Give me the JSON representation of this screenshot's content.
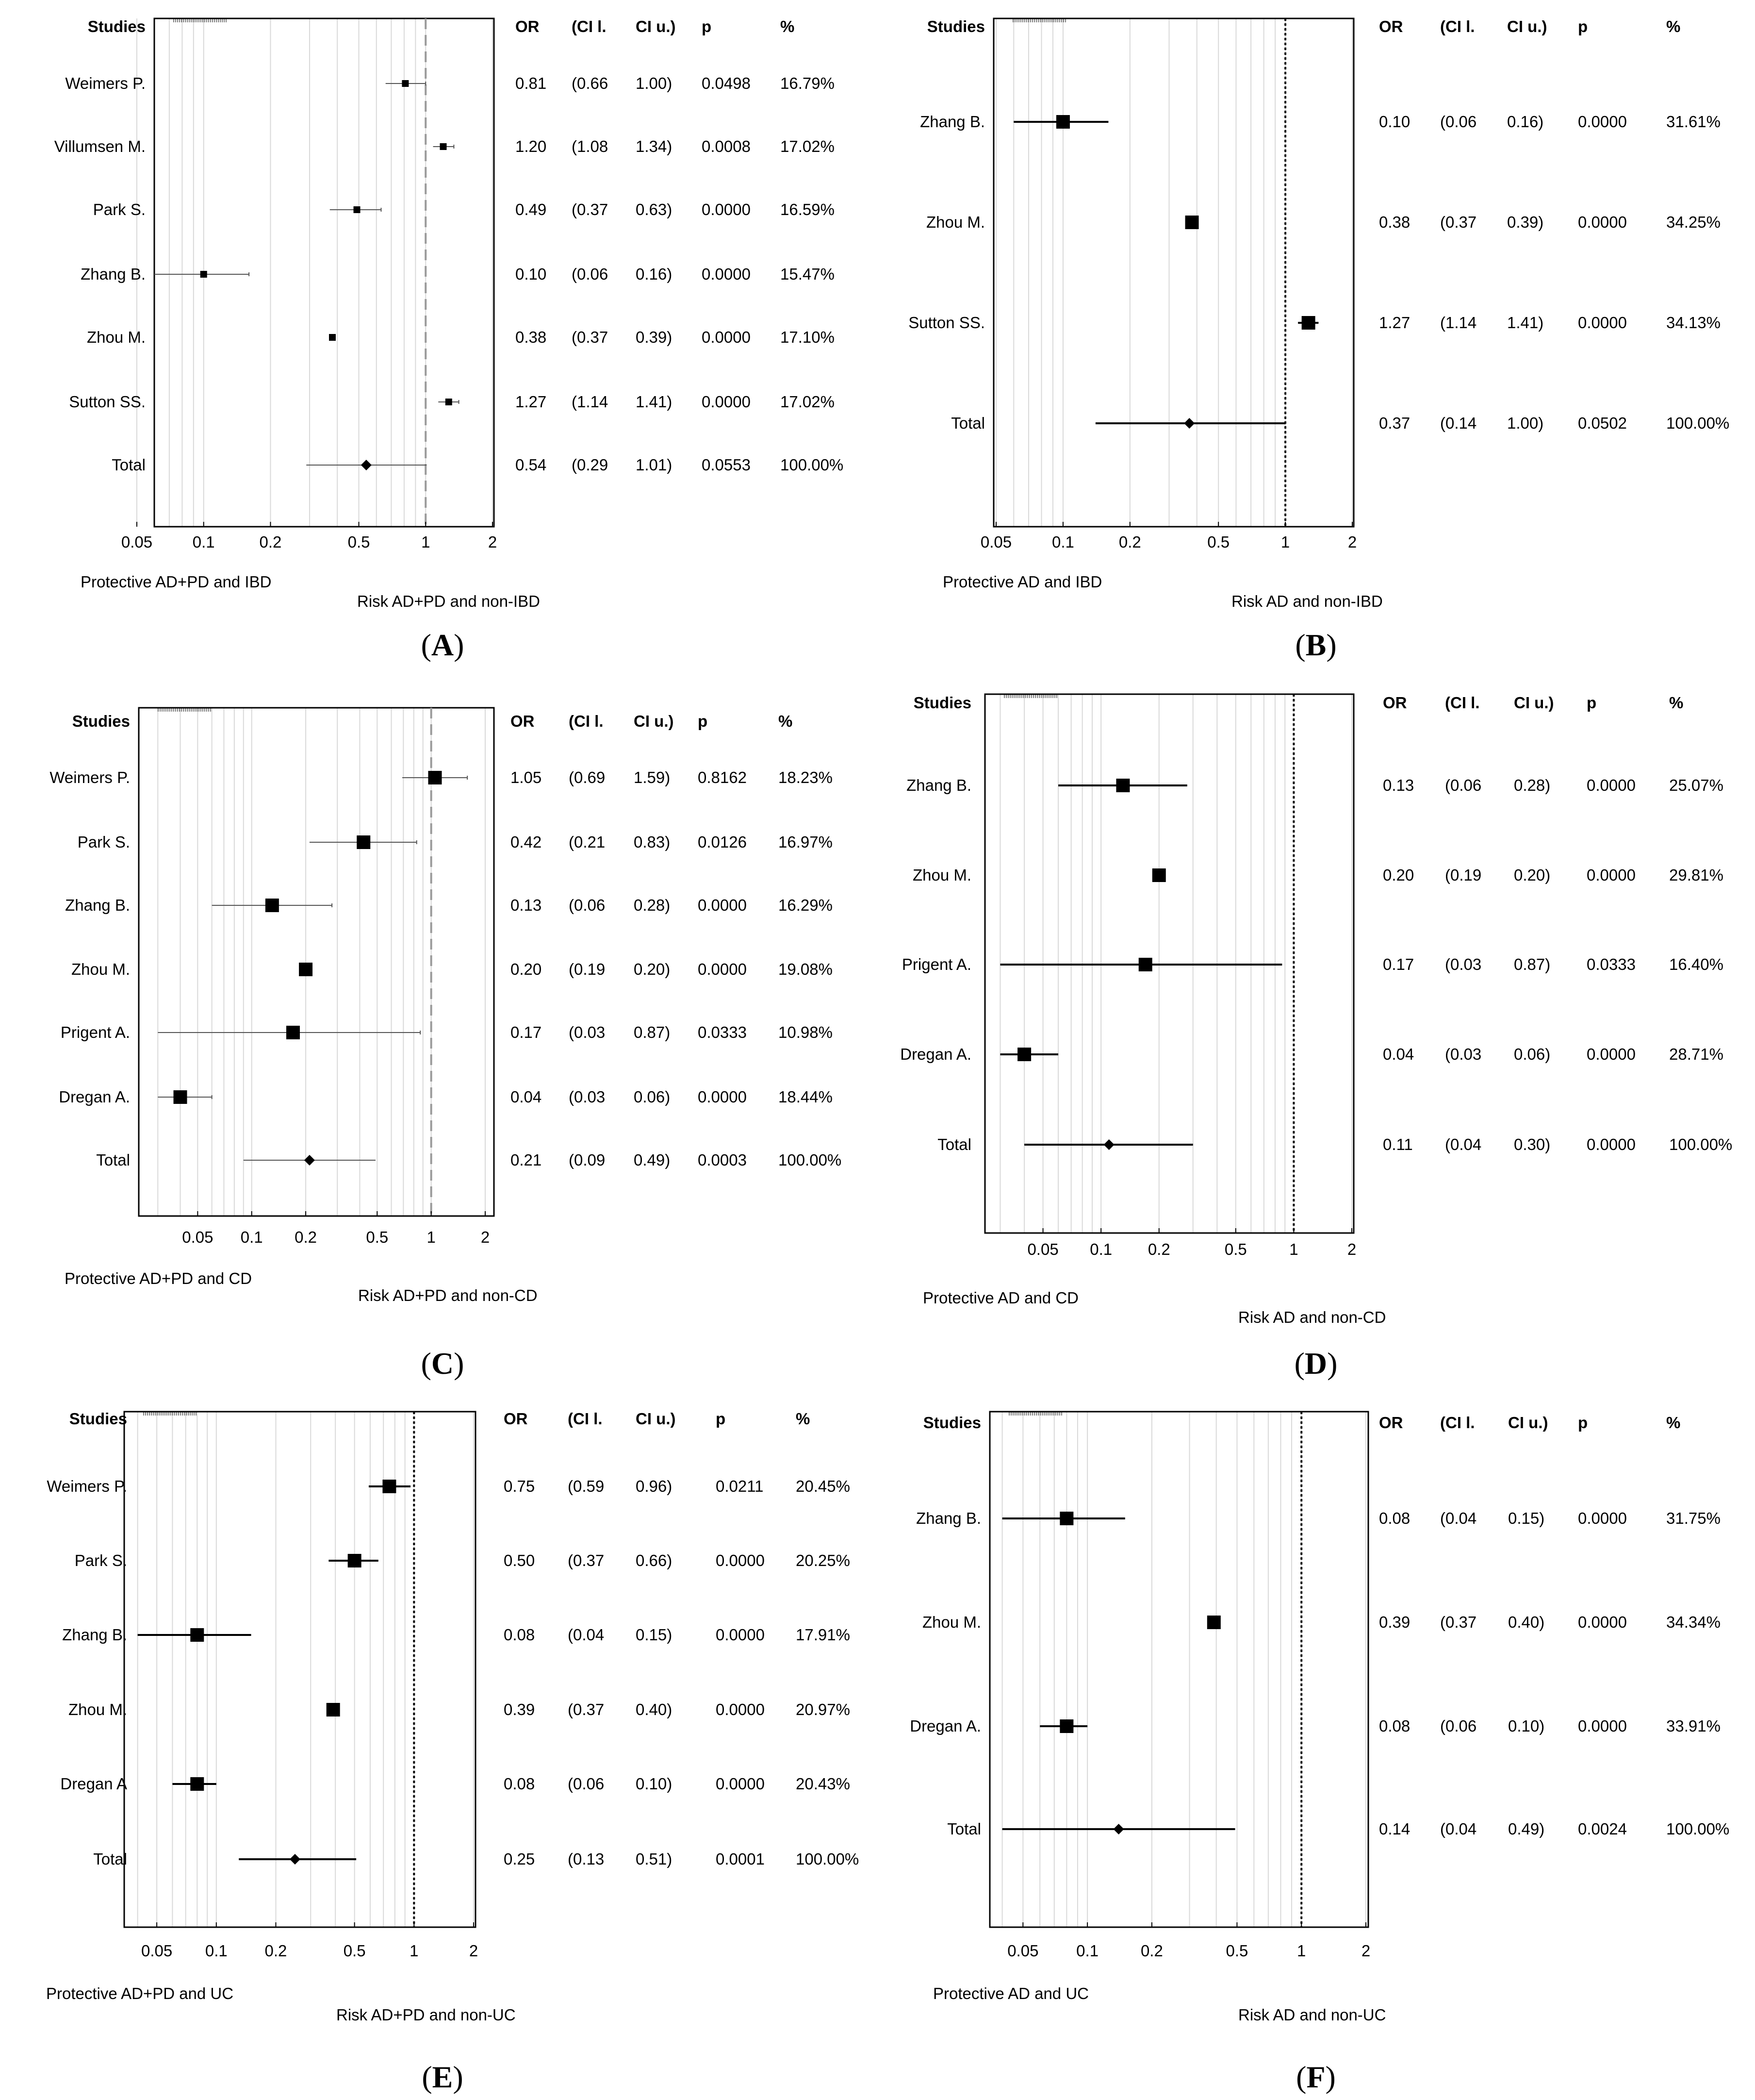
{
  "chart_data": [
    {
      "type": "forest",
      "panel_label": "A",
      "header": {
        "studies": "Studies",
        "or": "OR",
        "cil": "(CI l.",
        "ciu": "CI u.)",
        "p": "p",
        "pct": "%"
      },
      "x_scale": "log",
      "xlim": [
        0.05,
        2
      ],
      "x_ticks": [
        "0.05",
        "0.1",
        "0.2",
        "0.5",
        "1",
        "2"
      ],
      "reference_line": "dashed",
      "left_label": "Protective AD+PD and IBD",
      "right_label": "Risk AD+PD and non-IBD",
      "rows": [
        {
          "study": "Weimers P.",
          "or": 0.81,
          "lo": 0.66,
          "hi": 1.0,
          "or_text": "0.81",
          "cil_text": "(0.66",
          "ciu_text": "1.00)",
          "p_text": "0.0498",
          "pct_text": "16.79%"
        },
        {
          "study": "Villumsen M.",
          "or": 1.2,
          "lo": 1.08,
          "hi": 1.34,
          "or_text": "1.20",
          "cil_text": "(1.08",
          "ciu_text": "1.34)",
          "p_text": "0.0008",
          "pct_text": "17.02%"
        },
        {
          "study": "Park S.",
          "or": 0.49,
          "lo": 0.37,
          "hi": 0.63,
          "or_text": "0.49",
          "cil_text": "(0.37",
          "ciu_text": "0.63)",
          "p_text": "0.0000",
          "pct_text": "16.59%"
        },
        {
          "study": "Zhang B.",
          "or": 0.1,
          "lo": 0.06,
          "hi": 0.16,
          "or_text": "0.10",
          "cil_text": "(0.06",
          "ciu_text": "0.16)",
          "p_text": "0.0000",
          "pct_text": "15.47%"
        },
        {
          "study": "Zhou M.",
          "or": 0.38,
          "lo": 0.37,
          "hi": 0.39,
          "or_text": "0.38",
          "cil_text": "(0.37",
          "ciu_text": "0.39)",
          "p_text": "0.0000",
          "pct_text": "17.10%"
        },
        {
          "study": "Sutton SS.",
          "or": 1.27,
          "lo": 1.14,
          "hi": 1.41,
          "or_text": "1.27",
          "cil_text": "(1.14",
          "ciu_text": "1.41)",
          "p_text": "0.0000",
          "pct_text": "17.02%"
        },
        {
          "study": "Total",
          "or": 0.54,
          "lo": 0.29,
          "hi": 1.01,
          "or_text": "0.54",
          "cil_text": "(0.29",
          "ciu_text": "1.01)",
          "p_text": "0.0553",
          "pct_text": "100.00%",
          "is_total": true
        }
      ]
    },
    {
      "type": "forest",
      "panel_label": "B",
      "header": {
        "studies": "Studies",
        "or": "OR",
        "cil": "(CI l.",
        "ciu": "CI u.)",
        "p": "p",
        "pct": "%"
      },
      "x_scale": "log",
      "xlim": [
        0.05,
        2
      ],
      "x_ticks": [
        "0.05",
        "0.1",
        "0.2",
        "0.5",
        "1",
        "2"
      ],
      "reference_line": "dotted",
      "left_label": "Protective AD and IBD",
      "right_label": "Risk AD and non-IBD",
      "rows": [
        {
          "study": "Zhang B.",
          "or": 0.1,
          "lo": 0.06,
          "hi": 0.16,
          "or_text": "0.10",
          "cil_text": "(0.06",
          "ciu_text": "0.16)",
          "p_text": "0.0000",
          "pct_text": "31.61%"
        },
        {
          "study": "Zhou M.",
          "or": 0.38,
          "lo": 0.37,
          "hi": 0.39,
          "or_text": "0.38",
          "cil_text": "(0.37",
          "ciu_text": "0.39)",
          "p_text": "0.0000",
          "pct_text": "34.25%"
        },
        {
          "study": "Sutton SS.",
          "or": 1.27,
          "lo": 1.14,
          "hi": 1.41,
          "or_text": "1.27",
          "cil_text": "(1.14",
          "ciu_text": "1.41)",
          "p_text": "0.0000",
          "pct_text": "34.13%"
        },
        {
          "study": "Total",
          "or": 0.37,
          "lo": 0.14,
          "hi": 1.0,
          "or_text": "0.37",
          "cil_text": "(0.14",
          "ciu_text": "1.00)",
          "p_text": "0.0502",
          "pct_text": "100.00%",
          "is_total": true
        }
      ]
    },
    {
      "type": "forest",
      "panel_label": "C",
      "header": {
        "studies": "Studies",
        "or": "OR",
        "cil": "(CI l.",
        "ciu": "CI u.)",
        "p": "p",
        "pct": "%"
      },
      "x_scale": "log",
      "xlim": [
        0.025,
        2
      ],
      "x_ticks": [
        "0.05",
        "0.1",
        "0.2",
        "0.5",
        "1",
        "2"
      ],
      "reference_line": "dashed",
      "left_label": "Protective AD+PD and CD",
      "right_label": "Risk AD+PD and non-CD",
      "rows": [
        {
          "study": "Weimers P.",
          "or": 1.05,
          "lo": 0.69,
          "hi": 1.59,
          "or_text": "1.05",
          "cil_text": "(0.69",
          "ciu_text": "1.59)",
          "p_text": "0.8162",
          "pct_text": "18.23%"
        },
        {
          "study": "Park S.",
          "or": 0.42,
          "lo": 0.21,
          "hi": 0.83,
          "or_text": "0.42",
          "cil_text": "(0.21",
          "ciu_text": "0.83)",
          "p_text": "0.0126",
          "pct_text": "16.97%"
        },
        {
          "study": "Zhang B.",
          "or": 0.13,
          "lo": 0.06,
          "hi": 0.28,
          "or_text": "0.13",
          "cil_text": "(0.06",
          "ciu_text": "0.28)",
          "p_text": "0.0000",
          "pct_text": "16.29%"
        },
        {
          "study": "Zhou M.",
          "or": 0.2,
          "lo": 0.19,
          "hi": 0.2,
          "or_text": "0.20",
          "cil_text": "(0.19",
          "ciu_text": "0.20)",
          "p_text": "0.0000",
          "pct_text": "19.08%"
        },
        {
          "study": "Prigent A.",
          "or": 0.17,
          "lo": 0.03,
          "hi": 0.87,
          "or_text": "0.17",
          "cil_text": "(0.03",
          "ciu_text": "0.87)",
          "p_text": "0.0333",
          "pct_text": "10.98%"
        },
        {
          "study": "Dregan A.",
          "or": 0.04,
          "lo": 0.03,
          "hi": 0.06,
          "or_text": "0.04",
          "cil_text": "(0.03",
          "ciu_text": "0.06)",
          "p_text": "0.0000",
          "pct_text": "18.44%"
        },
        {
          "study": "Total",
          "or": 0.21,
          "lo": 0.09,
          "hi": 0.49,
          "or_text": "0.21",
          "cil_text": "(0.09",
          "ciu_text": "0.49)",
          "p_text": "0.0003",
          "pct_text": "100.00%",
          "is_total": true
        }
      ]
    },
    {
      "type": "forest",
      "panel_label": "D",
      "header": {
        "studies": "Studies",
        "or": "OR",
        "cil": "(CI l.",
        "ciu": "CI u.)",
        "p": "p",
        "pct": "%"
      },
      "x_scale": "log",
      "xlim": [
        0.025,
        2
      ],
      "x_ticks": [
        "0.05",
        "0.1",
        "0.2",
        "0.5",
        "1",
        "2"
      ],
      "reference_line": "dotted",
      "left_label": "Protective AD and CD",
      "right_label": "Risk AD and non-CD",
      "rows": [
        {
          "study": "Zhang B.",
          "or": 0.13,
          "lo": 0.06,
          "hi": 0.28,
          "or_text": "0.13",
          "cil_text": "(0.06",
          "ciu_text": "0.28)",
          "p_text": "0.0000",
          "pct_text": "25.07%"
        },
        {
          "study": "Zhou M.",
          "or": 0.2,
          "lo": 0.19,
          "hi": 0.2,
          "or_text": "0.20",
          "cil_text": "(0.19",
          "ciu_text": "0.20)",
          "p_text": "0.0000",
          "pct_text": "29.81%"
        },
        {
          "study": "Prigent A.",
          "or": 0.17,
          "lo": 0.03,
          "hi": 0.87,
          "or_text": "0.17",
          "cil_text": "(0.03",
          "ciu_text": "0.87)",
          "p_text": "0.0333",
          "pct_text": "16.40%"
        },
        {
          "study": "Dregan A.",
          "or": 0.04,
          "lo": 0.03,
          "hi": 0.06,
          "or_text": "0.04",
          "cil_text": "(0.03",
          "ciu_text": "0.06)",
          "p_text": "0.0000",
          "pct_text": "28.71%"
        },
        {
          "study": "Total",
          "or": 0.11,
          "lo": 0.04,
          "hi": 0.3,
          "or_text": "0.11",
          "cil_text": "(0.04",
          "ciu_text": "0.30)",
          "p_text": "0.0000",
          "pct_text": "100.00%",
          "is_total": true
        }
      ]
    },
    {
      "type": "forest",
      "panel_label": "E",
      "header": {
        "studies": "Studies",
        "or": "OR",
        "cil": "(CI l.",
        "ciu": "CI u.)",
        "p": "p",
        "pct": "%"
      },
      "x_scale": "log",
      "xlim": [
        0.035,
        2
      ],
      "x_ticks": [
        "0.05",
        "0.1",
        "0.2",
        "0.5",
        "1",
        "2"
      ],
      "reference_line": "dotted",
      "left_label": "Protective AD+PD and UC",
      "right_label": "Risk AD+PD and non-UC",
      "rows": [
        {
          "study": "Weimers P.",
          "or": 0.75,
          "lo": 0.59,
          "hi": 0.96,
          "or_text": "0.75",
          "cil_text": "(0.59",
          "ciu_text": "0.96)",
          "p_text": "0.0211",
          "pct_text": "20.45%"
        },
        {
          "study": "Park S.",
          "or": 0.5,
          "lo": 0.37,
          "hi": 0.66,
          "or_text": "0.50",
          "cil_text": "(0.37",
          "ciu_text": "0.66)",
          "p_text": "0.0000",
          "pct_text": "20.25%"
        },
        {
          "study": "Zhang B.",
          "or": 0.08,
          "lo": 0.04,
          "hi": 0.15,
          "or_text": "0.08",
          "cil_text": "(0.04",
          "ciu_text": "0.15)",
          "p_text": "0.0000",
          "pct_text": "17.91%"
        },
        {
          "study": "Zhou M.",
          "or": 0.39,
          "lo": 0.37,
          "hi": 0.4,
          "or_text": "0.39",
          "cil_text": "(0.37",
          "ciu_text": "0.40)",
          "p_text": "0.0000",
          "pct_text": "20.97%"
        },
        {
          "study": "Dregan A",
          "or": 0.08,
          "lo": 0.06,
          "hi": 0.1,
          "or_text": "0.08",
          "cil_text": "(0.06",
          "ciu_text": "0.10)",
          "p_text": "0.0000",
          "pct_text": "20.43%"
        },
        {
          "study": "Total",
          "or": 0.25,
          "lo": 0.13,
          "hi": 0.51,
          "or_text": "0.25",
          "cil_text": "(0.13",
          "ciu_text": "0.51)",
          "p_text": "0.0001",
          "pct_text": "100.00%",
          "is_total": true
        }
      ]
    },
    {
      "type": "forest",
      "panel_label": "F",
      "header": {
        "studies": "Studies",
        "or": "OR",
        "cil": "(CI l.",
        "ciu": "CI u.)",
        "p": "p",
        "pct": "%"
      },
      "x_scale": "log",
      "xlim": [
        0.035,
        2
      ],
      "x_ticks": [
        "0.05",
        "0.1",
        "0.2",
        "0.5",
        "1",
        "2"
      ],
      "reference_line": "dotted",
      "left_label": "Protective AD and UC",
      "right_label": "Risk AD and non-UC",
      "rows": [
        {
          "study": "Zhang B.",
          "or": 0.08,
          "lo": 0.04,
          "hi": 0.15,
          "or_text": "0.08",
          "cil_text": "(0.04",
          "ciu_text": "0.15)",
          "p_text": "0.0000",
          "pct_text": "31.75%"
        },
        {
          "study": "Zhou M.",
          "or": 0.39,
          "lo": 0.37,
          "hi": 0.4,
          "or_text": "0.39",
          "cil_text": "(0.37",
          "ciu_text": "0.40)",
          "p_text": "0.0000",
          "pct_text": "34.34%"
        },
        {
          "study": "Dregan A.",
          "or": 0.08,
          "lo": 0.06,
          "hi": 0.1,
          "or_text": "0.08",
          "cil_text": "(0.06",
          "ciu_text": "0.10)",
          "p_text": "0.0000",
          "pct_text": "33.91%"
        },
        {
          "study": "Total",
          "or": 0.14,
          "lo": 0.04,
          "hi": 0.49,
          "or_text": "0.14",
          "cil_text": "(0.04",
          "ciu_text": "0.49)",
          "p_text": "0.0024",
          "pct_text": "100.00%",
          "is_total": true
        }
      ]
    }
  ]
}
